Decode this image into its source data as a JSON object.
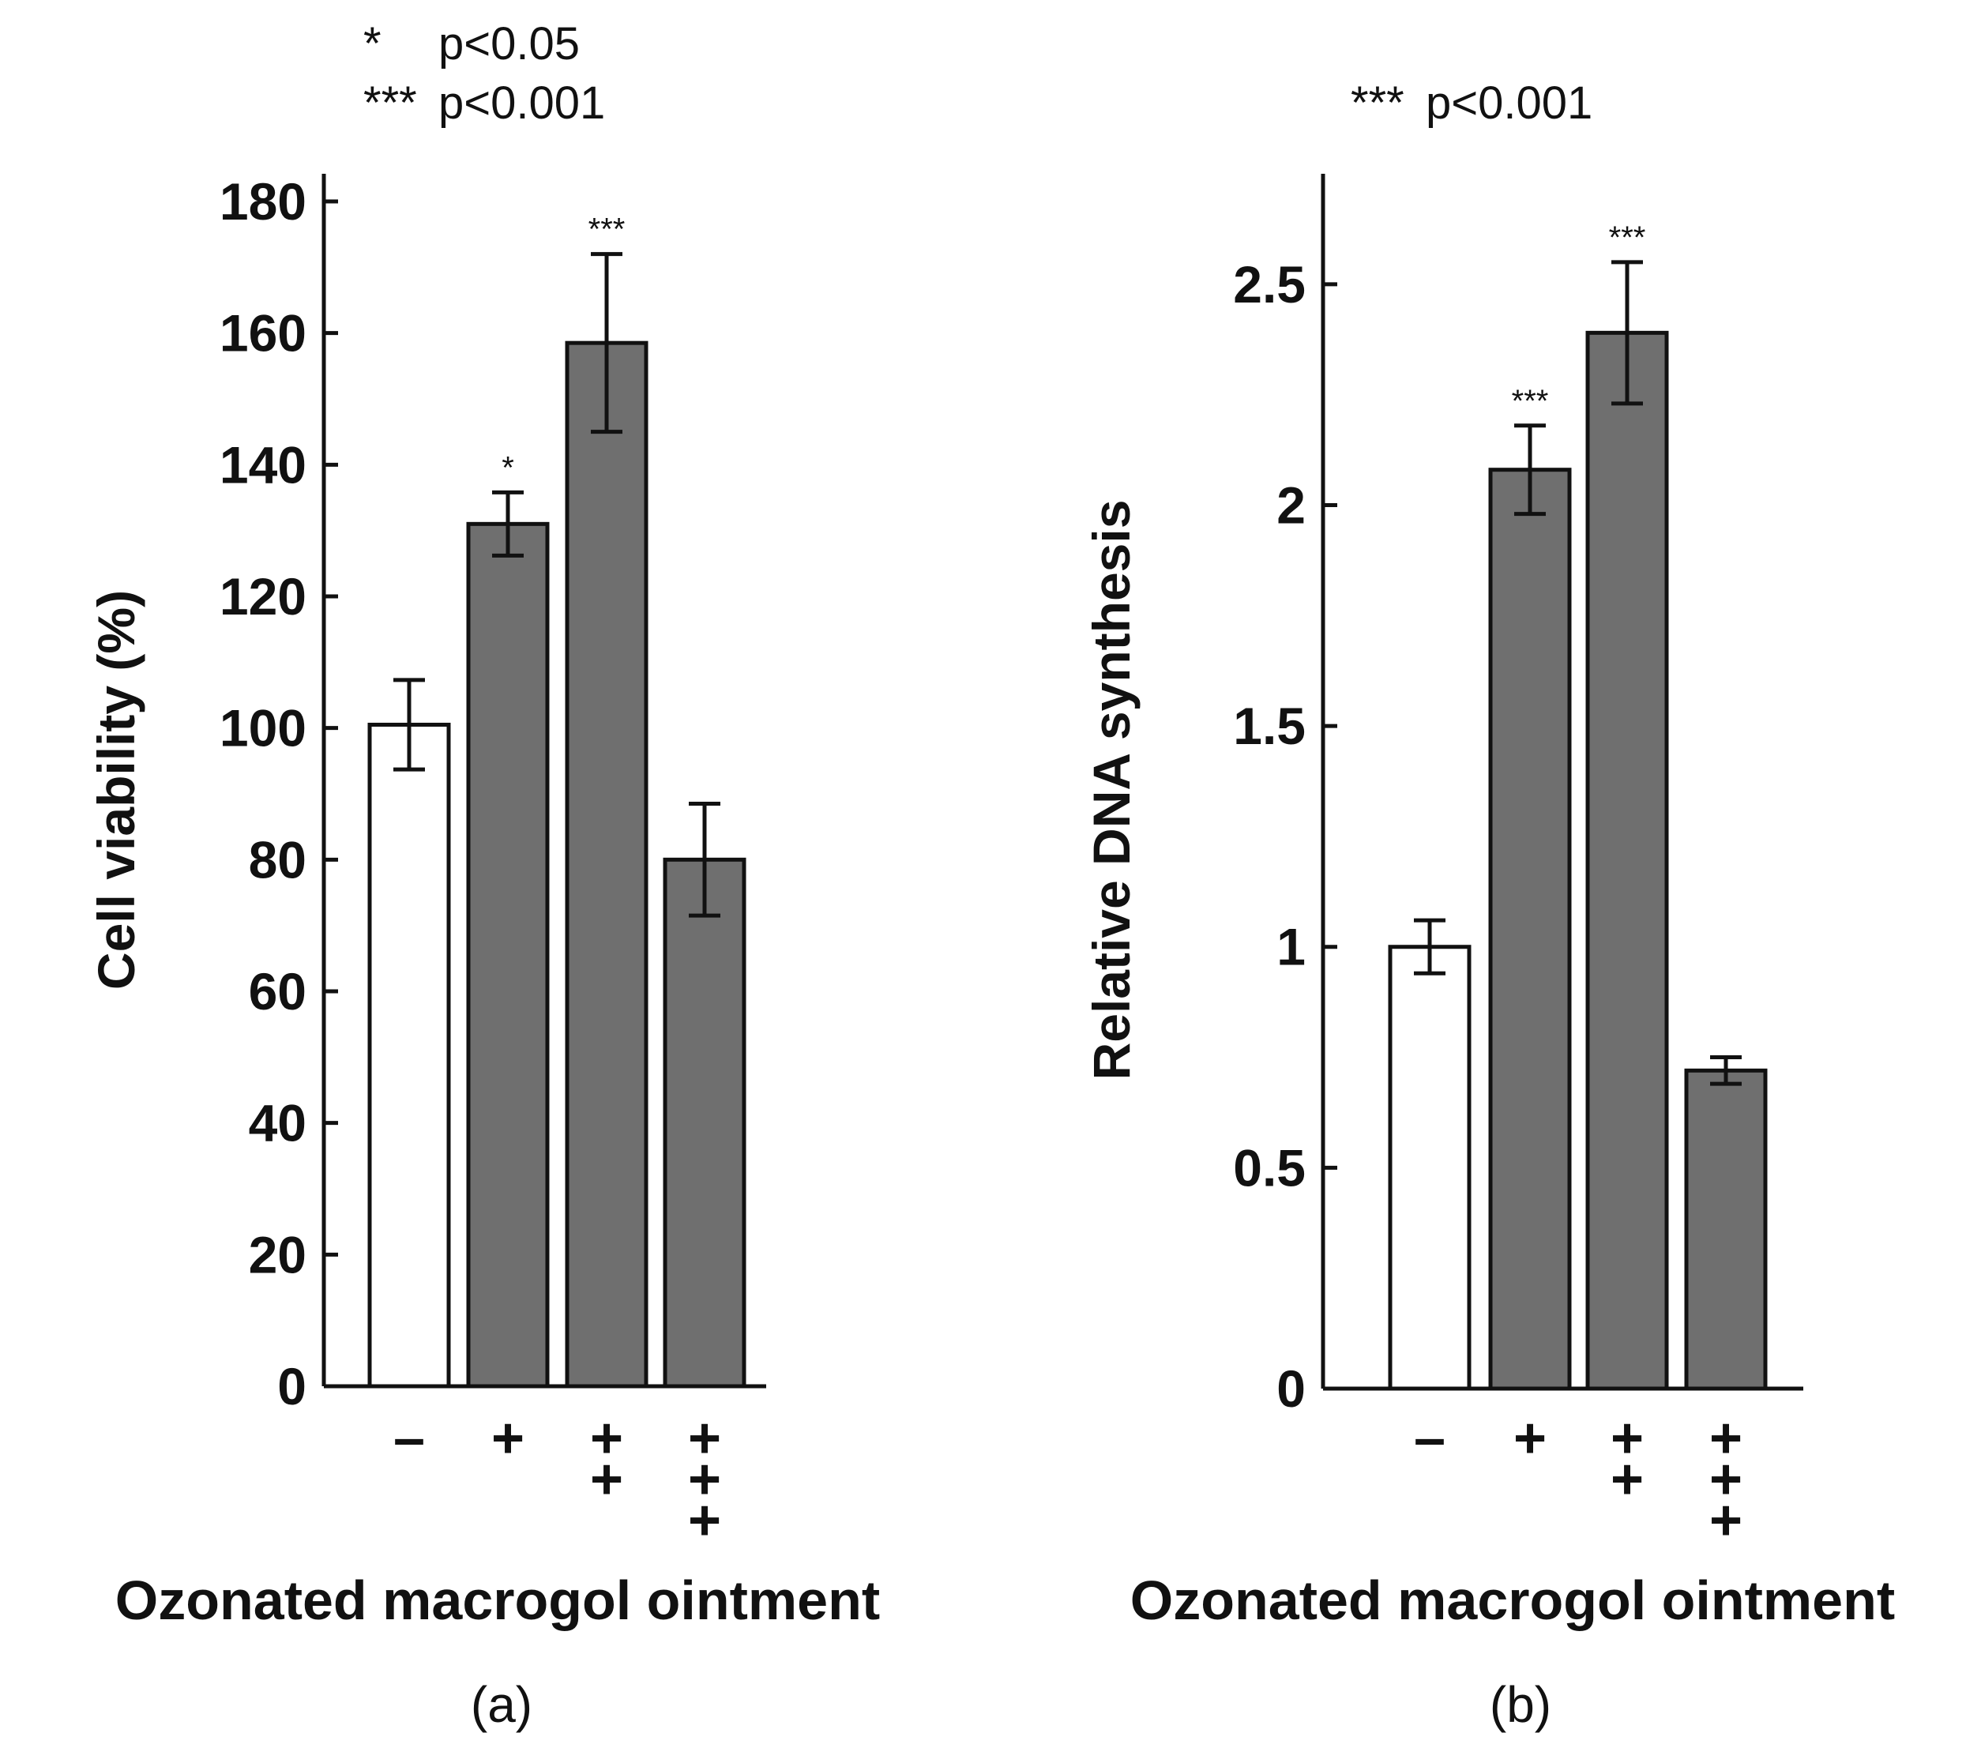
{
  "chart_data": [
    {
      "type": "bar",
      "panel_label": "(a)",
      "legend_lines": [
        {
          "mark": "*",
          "text": "p<0.05"
        },
        {
          "mark": "***",
          "text": "p<0.001"
        }
      ],
      "ylabel": "Cell viability (%)",
      "xlabel": "Ozonated macrogol ointment",
      "ylim": [
        0,
        180
      ],
      "yticks": [
        "0",
        "20",
        "40",
        "60",
        "80",
        "100",
        "120",
        "140",
        "160",
        "180"
      ],
      "categories": [
        {
          "lines": [
            "–"
          ]
        },
        {
          "lines": [
            "+"
          ]
        },
        {
          "lines": [
            "+",
            "+"
          ]
        },
        {
          "lines": [
            "+",
            "+",
            "+"
          ]
        }
      ],
      "values": [
        100.5,
        131,
        158.5,
        80
      ],
      "errors": [
        6.8,
        4.8,
        13.5,
        8.5
      ],
      "significance": [
        "",
        "*",
        "***",
        ""
      ],
      "bar_colors": [
        "#ffffff",
        "#6f6f6f",
        "#6f6f6f",
        "#6f6f6f"
      ]
    },
    {
      "type": "bar",
      "panel_label": "(b)",
      "legend_lines": [
        {
          "mark": "***",
          "text": "p<0.001"
        }
      ],
      "ylabel": "Relative DNA synthesis",
      "xlabel": "Ozonated macrogol ointment",
      "ylim": [
        0,
        2.75
      ],
      "yticks": [
        "0",
        "0.5",
        "1",
        "1.5",
        "2",
        "2.5"
      ],
      "categories": [
        {
          "lines": [
            "–"
          ]
        },
        {
          "lines": [
            "+"
          ]
        },
        {
          "lines": [
            "+",
            "+"
          ]
        },
        {
          "lines": [
            "+",
            "+",
            "+"
          ]
        }
      ],
      "values": [
        1.0,
        2.08,
        2.39,
        0.72
      ],
      "errors": [
        0.06,
        0.1,
        0.16,
        0.03
      ],
      "significance": [
        "",
        "***",
        "***",
        ""
      ],
      "bar_colors": [
        "#ffffff",
        "#6f6f6f",
        "#6f6f6f",
        "#6f6f6f"
      ]
    }
  ]
}
